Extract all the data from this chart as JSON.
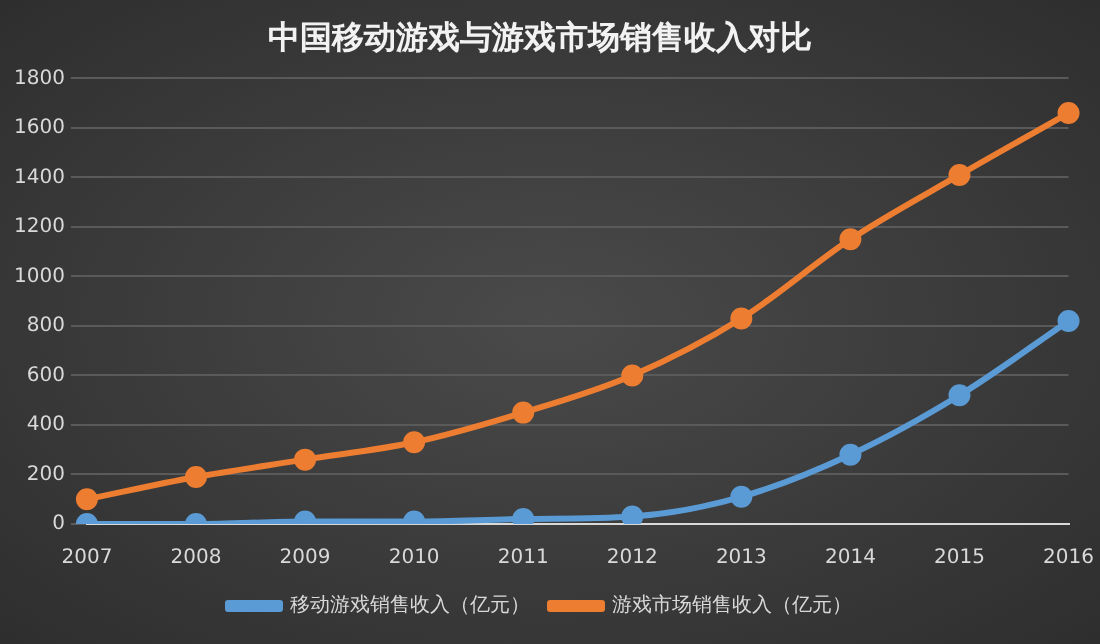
{
  "chart_data": {
    "type": "line",
    "title": "中国移动游戏与游戏市场销售收入对比",
    "categories": [
      "2007",
      "2008",
      "2009",
      "2010",
      "2011",
      "2012",
      "2013",
      "2014",
      "2015",
      "2016"
    ],
    "series": [
      {
        "name": "移动游戏销售收入（亿元）",
        "color": "#5b9bd5",
        "values": [
          0,
          0,
          10,
          10,
          20,
          30,
          110,
          280,
          520,
          820
        ]
      },
      {
        "name": "游戏市场销售收入（亿元）",
        "color": "#ed7d31",
        "values": [
          100,
          190,
          260,
          330,
          450,
          600,
          830,
          1150,
          1410,
          1660
        ]
      }
    ],
    "ylim": [
      0,
      1800
    ],
    "yticks": [
      0,
      200,
      400,
      600,
      800,
      1000,
      1200,
      1400,
      1600,
      1800
    ],
    "grid": "y",
    "legend": "bottom",
    "marker": "circle",
    "line_style": "solid"
  }
}
